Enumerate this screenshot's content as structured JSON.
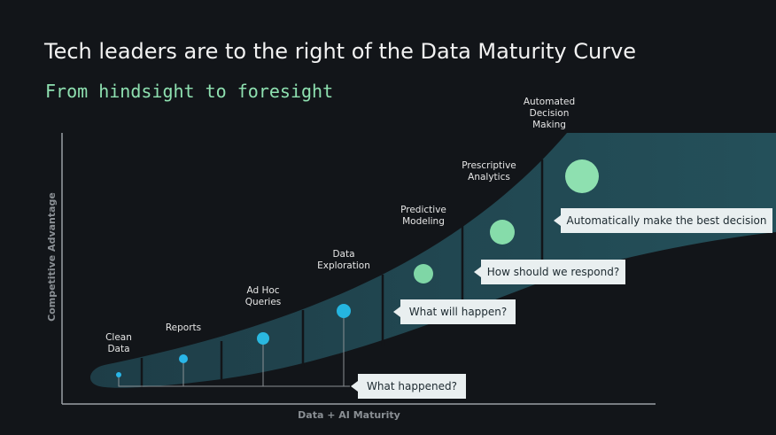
{
  "title": "Tech leaders are to the right of the Data Maturity Curve",
  "subtitle": "From hindsight to foresight",
  "y_axis_label": "Competitive Advantage",
  "x_axis_label": "Data + AI Maturity",
  "stages": [
    {
      "label": [
        "Clean",
        "Data"
      ]
    },
    {
      "label": [
        "Reports"
      ]
    },
    {
      "label": [
        "Ad Hoc",
        "Queries"
      ]
    },
    {
      "label": [
        "Data",
        "Exploration"
      ]
    },
    {
      "label": [
        "Predictive",
        "Modeling"
      ]
    },
    {
      "label": [
        "Prescriptive",
        "Analytics"
      ]
    },
    {
      "label": [
        "Automated",
        "Decision",
        "Making"
      ]
    }
  ],
  "callouts": [
    "What happened?",
    "What will happen?",
    "How should we respond?",
    "Automatically make the best decision"
  ]
}
